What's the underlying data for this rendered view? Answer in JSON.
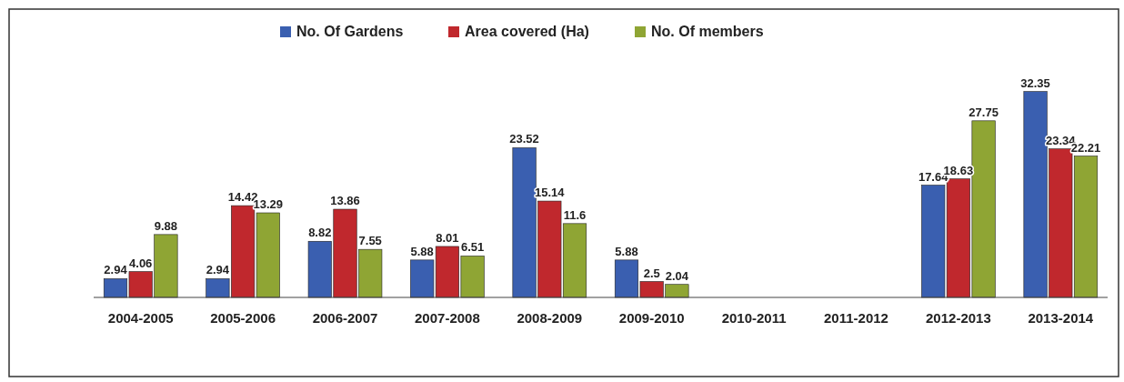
{
  "chart_data": {
    "type": "bar",
    "categories": [
      "2004-2005",
      "2005-2006",
      "2006-2007",
      "2007-2008",
      "2008-2009",
      "2009-2010",
      "2010-2011",
      "2011-2012",
      "2012-2013",
      "2013-2014"
    ],
    "series": [
      {
        "name": "No. Of Gardens",
        "color": "#3a5fb0",
        "values": [
          2.94,
          2.94,
          8.82,
          5.88,
          23.52,
          5.88,
          null,
          null,
          17.64,
          32.35
        ]
      },
      {
        "name": "Area covered (Ha)",
        "color": "#c0282d",
        "values": [
          4.06,
          14.42,
          13.86,
          8.01,
          15.14,
          2.5,
          null,
          null,
          18.63,
          23.34
        ]
      },
      {
        "name": "No. Of members",
        "color": "#8fa534",
        "values": [
          9.88,
          13.29,
          7.55,
          6.51,
          11.6,
          2.04,
          null,
          null,
          27.75,
          22.21
        ]
      }
    ],
    "data_labels": true,
    "legend": "top",
    "grid": false
  }
}
